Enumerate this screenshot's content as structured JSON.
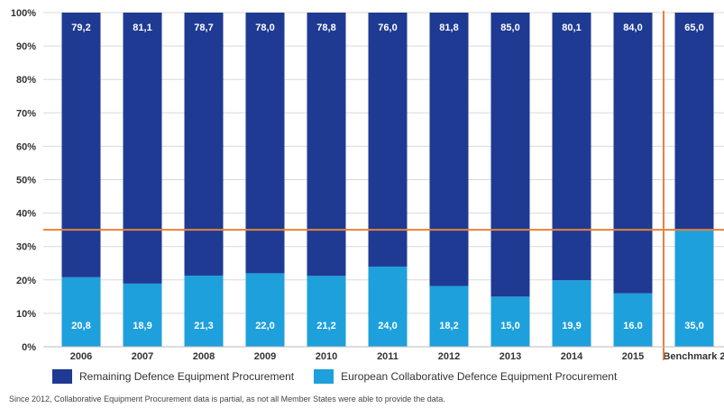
{
  "chart_data": {
    "type": "bar",
    "stacked": true,
    "categories": [
      "2006",
      "2007",
      "2008",
      "2009",
      "2010",
      "2011",
      "2012",
      "2013",
      "2014",
      "2015",
      "Benchmark 2"
    ],
    "series": [
      {
        "name": "European Collaborative Defence Equipment Procurement",
        "values": [
          20.8,
          18.9,
          21.3,
          22.0,
          21.2,
          24.0,
          18.2,
          15.0,
          19.9,
          16.0,
          35.0
        ],
        "labels": [
          "20,8",
          "18,9",
          "21,3",
          "22,0",
          "21,2",
          "24,0",
          "18,2",
          "15,0",
          "19,9",
          "16.0",
          "35,0"
        ],
        "color": "#1ea0dc"
      },
      {
        "name": "Remaining Defence Equipment Procurement",
        "values": [
          79.2,
          81.1,
          78.7,
          78.0,
          78.8,
          76.0,
          81.8,
          85.0,
          80.1,
          84.0,
          65.0
        ],
        "labels": [
          "79,2",
          "81,1",
          "78,7",
          "78,0",
          "78,8",
          "76,0",
          "81,8",
          "85,0",
          "80,1",
          "84,0",
          "65,0"
        ],
        "color": "#1f3a93"
      }
    ],
    "yticks": [
      "0%",
      "10%",
      "20%",
      "30%",
      "40%",
      "50%",
      "60%",
      "70%",
      "80%",
      "90%",
      "100%"
    ],
    "ylim": [
      0,
      100
    ],
    "benchmark_line": 35,
    "benchmark_line_color": "#e8823a",
    "grid": true,
    "legend_position": "bottom-left"
  },
  "footnote": "Since 2012, Collaborative Equipment Procurement data is partial, as not all Member States were able to provide the data."
}
